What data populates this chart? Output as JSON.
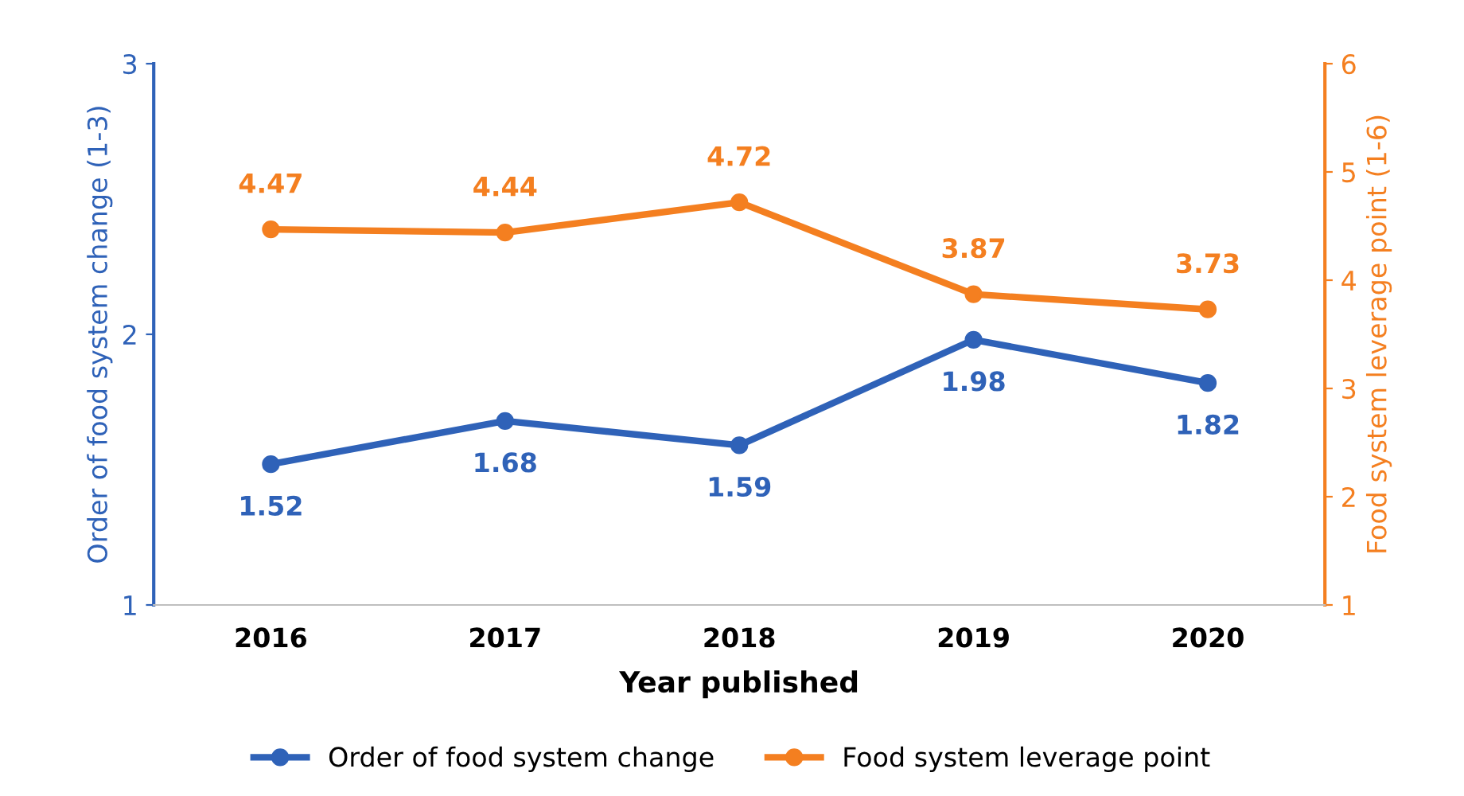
{
  "chart_data": {
    "type": "line",
    "xlabel": "Year published",
    "ylabel": "Order of food system change (1-3)",
    "y2label": "Food system leverage point (1-6)",
    "categories": [
      "2016",
      "2017",
      "2018",
      "2019",
      "2020"
    ],
    "series": [
      {
        "name": "Order of food system change",
        "color": "#2f62b8",
        "values": [
          1.52,
          1.68,
          1.59,
          1.98,
          1.82
        ]
      },
      {
        "name": "Food system leverage point",
        "color": "#f47f20",
        "values": [
          4.47,
          4.44,
          4.72,
          3.87,
          3.73
        ],
        "axis": "y2"
      }
    ],
    "ylim": [
      1,
      3
    ],
    "yticks": [
      1,
      2,
      3
    ],
    "y2lim": [
      1,
      6
    ],
    "y2ticks": [
      1,
      2,
      3,
      4,
      5,
      6
    ],
    "data_labels": true,
    "marker": "circle",
    "line_style": "solid",
    "grid": false,
    "legend": "bottom"
  }
}
